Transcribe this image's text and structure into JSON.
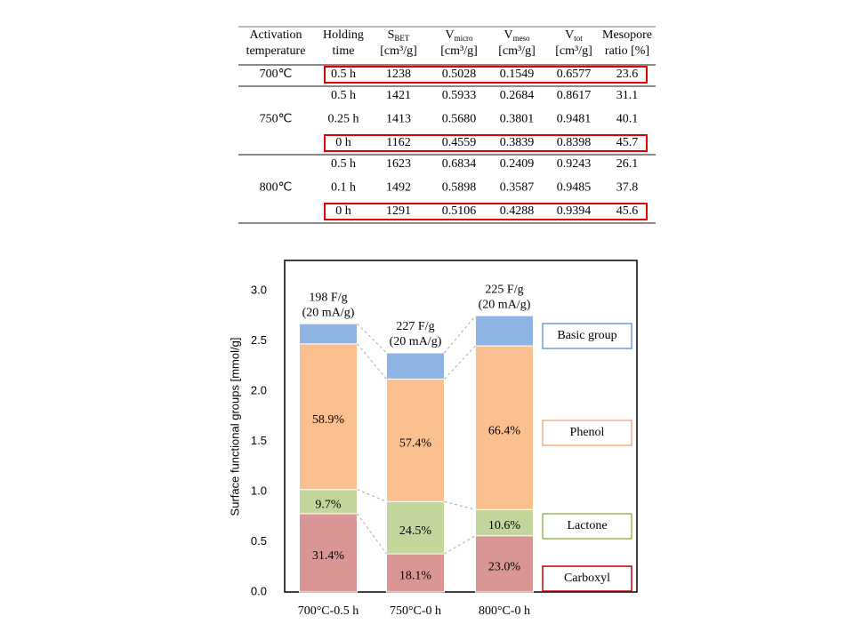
{
  "table": {
    "header": [
      {
        "lines": [
          "Activation",
          "temperature"
        ]
      },
      {
        "lines": [
          "Holding",
          "time"
        ]
      },
      {
        "symbol": "S",
        "subscript": "BET",
        "unit": "[cm³/g]"
      },
      {
        "symbol": "V",
        "subscript": "micro",
        "unit": "[cm³/g]"
      },
      {
        "symbol": "V",
        "subscript": "meso",
        "unit": "[cm³/g]"
      },
      {
        "symbol": "V",
        "subscript": "tot",
        "unit": "[cm³/g]"
      },
      {
        "lines": [
          "Mesopore",
          "ratio [%]"
        ]
      }
    ],
    "groups": [
      {
        "temperature": "700℃",
        "rows": [
          {
            "cells": [
              "0.5 h",
              "1238",
              "0.5028",
              "0.1549",
              "0.6577",
              "23.6"
            ],
            "highlight": true
          }
        ]
      },
      {
        "temperature": "750℃",
        "rows": [
          {
            "cells": [
              "0.5 h",
              "1421",
              "0.5933",
              "0.2684",
              "0.8617",
              "31.1"
            ],
            "highlight": false
          },
          {
            "cells": [
              "0.25 h",
              "1413",
              "0.5680",
              "0.3801",
              "0.9481",
              "40.1"
            ],
            "highlight": false
          },
          {
            "cells": [
              "0 h",
              "1162",
              "0.4559",
              "0.3839",
              "0.8398",
              "45.7"
            ],
            "highlight": true
          }
        ]
      },
      {
        "temperature": "800℃",
        "rows": [
          {
            "cells": [
              "0.5 h",
              "1623",
              "0.6834",
              "0.2409",
              "0.9243",
              "26.1"
            ],
            "highlight": false
          },
          {
            "cells": [
              "0.1 h",
              "1492",
              "0.5898",
              "0.3587",
              "0.9485",
              "37.8"
            ],
            "highlight": false
          },
          {
            "cells": [
              "0 h",
              "1291",
              "0.5106",
              "0.4288",
              "0.9394",
              "45.6"
            ],
            "highlight": true
          }
        ]
      }
    ]
  },
  "chart_data": {
    "type": "stacked_bar",
    "y_label": "Surface functional groups [mmol/g]",
    "categories": [
      "700°C-0.5 h",
      "750°C-0 h",
      "800°C-0 h"
    ],
    "bar_annotations": [
      {
        "capacity": "198 F/g",
        "current": "(20 mA/g)"
      },
      {
        "capacity": "227 F/g",
        "current": "(20 mA/g)"
      },
      {
        "capacity": "225 F/g",
        "current": "(20 mA/g)"
      }
    ],
    "series": [
      {
        "name": "Carboxyl",
        "color": "#d99694",
        "border_color": "#c00000",
        "values": [
          0.78,
          0.38,
          0.56
        ],
        "labels": [
          "31.4%",
          "18.1%",
          "23.0%"
        ]
      },
      {
        "name": "Lactone",
        "color": "#c3d69b",
        "border_color": "#9bbb59",
        "values": [
          0.24,
          0.52,
          0.26
        ],
        "labels": [
          "9.7%",
          "24.5%",
          "10.6%"
        ]
      },
      {
        "name": "Phenol",
        "color": "#fac090",
        "border_color": "#f4b183",
        "values": [
          1.45,
          1.22,
          1.63
        ],
        "labels": [
          "58.9%",
          "57.4%",
          "66.4%"
        ]
      },
      {
        "name": "Basic group",
        "color": "#8eb4e3",
        "border_color": "#6f9fd8",
        "values": [
          0.2,
          0.26,
          0.3
        ]
      }
    ],
    "ylim": [
      0,
      3.3
    ],
    "yticks": [
      {
        "value": 0,
        "label": "0.0"
      },
      0.5,
      {
        "value": 1,
        "label": "1.0"
      },
      1.5,
      {
        "value": 2,
        "label": "2.0"
      },
      2.5,
      {
        "value": 3,
        "label": "3.0"
      }
    ],
    "grid": false
  }
}
